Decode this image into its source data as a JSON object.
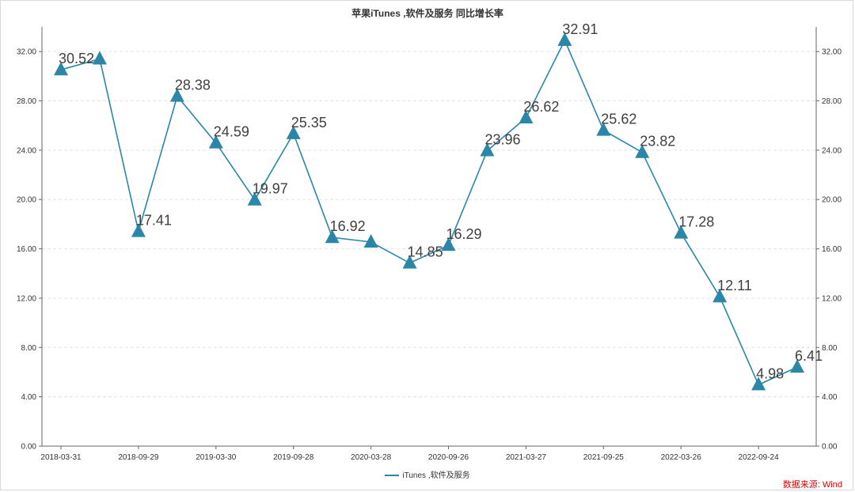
{
  "chart_data": {
    "type": "line",
    "title": "苹果iTunes ,软件及服务 同比增长率",
    "x": [
      "2018-03-31",
      "2018-06-30",
      "2018-09-29",
      "2018-12-29",
      "2019-03-30",
      "2019-06-29",
      "2019-09-28",
      "2019-12-28",
      "2020-03-28",
      "2020-06-27",
      "2020-09-26",
      "2020-12-26",
      "2021-03-27",
      "2021-06-26",
      "2021-09-25",
      "2021-12-25",
      "2022-03-26",
      "2022-06-25",
      "2022-09-24",
      "2022-12-31"
    ],
    "x_tick_labels": [
      "2018-03-31",
      "2018-09-29",
      "2019-03-30",
      "2019-09-28",
      "2020-03-28",
      "2020-09-26",
      "2021-03-27",
      "2021-09-25",
      "2022-03-26",
      "2022-09-24"
    ],
    "series": [
      {
        "name": "iTunes ,软件及服务",
        "values": [
          30.52,
          31.4,
          17.41,
          28.38,
          24.59,
          19.97,
          25.35,
          16.92,
          16.55,
          14.85,
          16.29,
          23.96,
          26.62,
          32.91,
          25.62,
          23.82,
          17.28,
          12.11,
          4.98,
          6.41
        ],
        "data_labels": [
          "30.52",
          "",
          "17.41",
          "28.38",
          "24.59",
          "19.97",
          "25.35",
          "16.92",
          "",
          "14.85",
          "16.29",
          "23.96",
          "26.62",
          "32.91",
          "25.62",
          "23.82",
          "17.28",
          "12.11",
          "4.98",
          "6.41"
        ],
        "color": "#2b86a8",
        "marker": "triangle"
      }
    ],
    "ylim": [
      0,
      34
    ],
    "y_ticks": [
      "0.00",
      "4.00",
      "8.00",
      "12.00",
      "16.00",
      "20.00",
      "24.00",
      "28.00",
      "32.00"
    ],
    "dual_y_axis": true,
    "grid": "horizontal dashed",
    "legend": "bottom-center",
    "source": "数据来源: Wind"
  }
}
